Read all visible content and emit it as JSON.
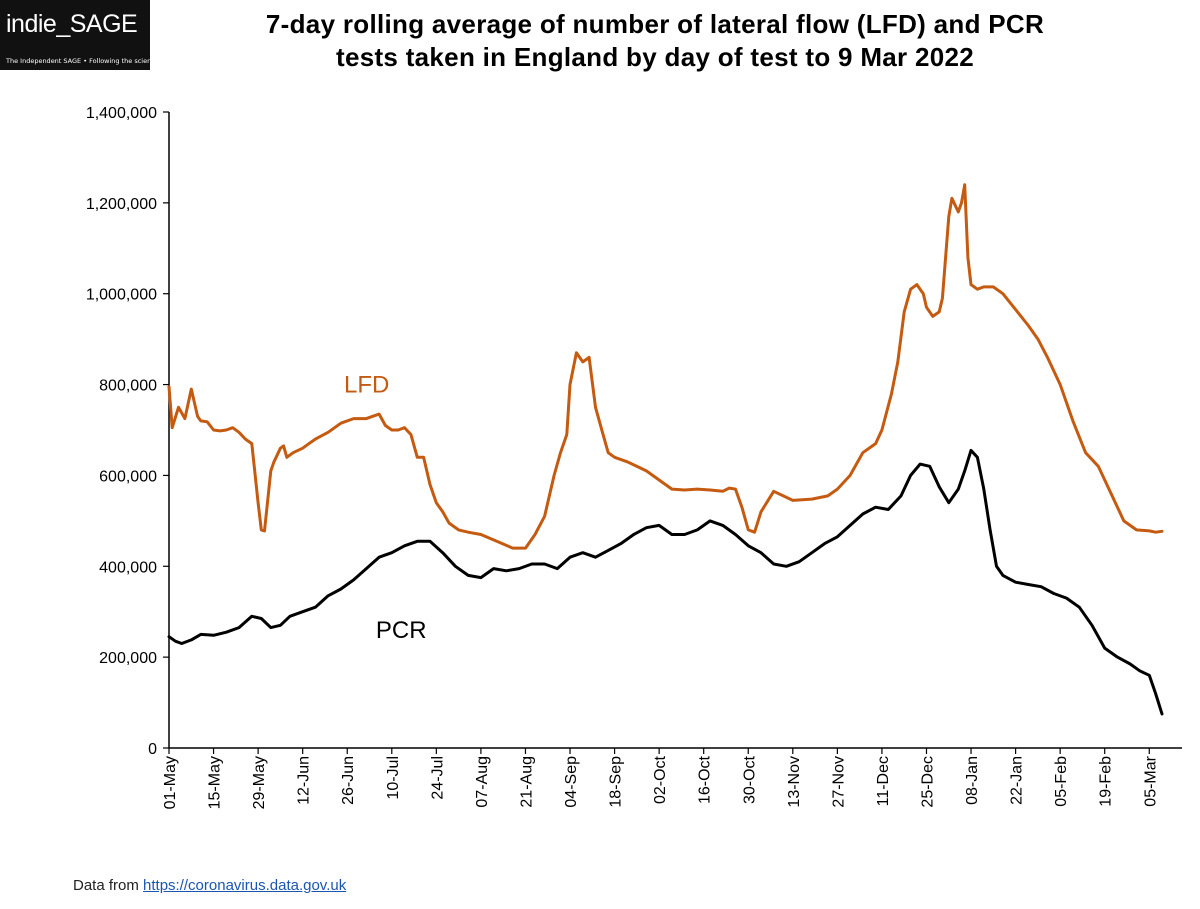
{
  "logo": {
    "name": "indie_SAGE",
    "tagline": "The Independent SAGE • Following the science"
  },
  "source": {
    "prefix": "Data from ",
    "link": "https://coronavirus.data.gov.uk"
  },
  "chart_data": {
    "type": "line",
    "title": "7-day rolling average of number of lateral flow (LFD) and PCR tests taken in England by day of test to 9 Mar 2022",
    "title_lines": [
      "7-day rolling average of number of lateral flow (LFD) and PCR",
      "tests taken in England by day of test to 9 Mar 2022"
    ],
    "xlabel": "",
    "ylabel": "",
    "ylim": [
      0,
      1400000
    ],
    "yticks": [
      0,
      200000,
      400000,
      600000,
      800000,
      1000000,
      1200000,
      1400000
    ],
    "ytick_labels": [
      "0",
      "200,000",
      "400,000",
      "600,000",
      "800,000",
      "1,000,000",
      "1,200,000",
      "1,400,000"
    ],
    "xlim": [
      "2021-05-01",
      "2022-03-09"
    ],
    "xticks": [
      "2021-05-01",
      "2021-05-15",
      "2021-05-29",
      "2021-06-12",
      "2021-06-26",
      "2021-07-10",
      "2021-07-24",
      "2021-08-07",
      "2021-08-21",
      "2021-09-04",
      "2021-09-18",
      "2021-10-02",
      "2021-10-16",
      "2021-10-30",
      "2021-11-13",
      "2021-11-27",
      "2021-12-11",
      "2021-12-25",
      "2022-01-08",
      "2022-01-22",
      "2022-02-05",
      "2022-02-19",
      "2022-03-05"
    ],
    "xtick_labels": [
      "01-May",
      "15-May",
      "29-May",
      "12-Jun",
      "26-Jun",
      "10-Jul",
      "24-Jul",
      "07-Aug",
      "21-Aug",
      "04-Sep",
      "18-Sep",
      "02-Oct",
      "16-Oct",
      "30-Oct",
      "13-Nov",
      "27-Nov",
      "11-Dec",
      "25-Dec",
      "08-Jan",
      "22-Jan",
      "05-Feb",
      "19-Feb",
      "05-Mar"
    ],
    "grid": false,
    "legend": "none",
    "series": [
      {
        "name": "LFD",
        "color": "#c55a11",
        "x": [
          "2021-05-01",
          "2021-05-02",
          "2021-05-04",
          "2021-05-06",
          "2021-05-08",
          "2021-05-10",
          "2021-05-11",
          "2021-05-13",
          "2021-05-15",
          "2021-05-17",
          "2021-05-19",
          "2021-05-21",
          "2021-05-23",
          "2021-05-25",
          "2021-05-27",
          "2021-05-29",
          "2021-05-30",
          "2021-05-31",
          "2021-06-02",
          "2021-06-03",
          "2021-06-05",
          "2021-06-06",
          "2021-06-07",
          "2021-06-09",
          "2021-06-12",
          "2021-06-14",
          "2021-06-16",
          "2021-06-20",
          "2021-06-24",
          "2021-06-28",
          "2021-07-02",
          "2021-07-06",
          "2021-07-08",
          "2021-07-10",
          "2021-07-12",
          "2021-07-14",
          "2021-07-16",
          "2021-07-18",
          "2021-07-20",
          "2021-07-22",
          "2021-07-24",
          "2021-07-26",
          "2021-07-28",
          "2021-07-31",
          "2021-08-03",
          "2021-08-07",
          "2021-08-12",
          "2021-08-17",
          "2021-08-21",
          "2021-08-24",
          "2021-08-27",
          "2021-08-30",
          "2021-09-01",
          "2021-09-03",
          "2021-09-04",
          "2021-09-06",
          "2021-09-08",
          "2021-09-10",
          "2021-09-12",
          "2021-09-14",
          "2021-09-16",
          "2021-09-18",
          "2021-09-22",
          "2021-09-28",
          "2021-10-02",
          "2021-10-06",
          "2021-10-10",
          "2021-10-14",
          "2021-10-18",
          "2021-10-22",
          "2021-10-24",
          "2021-10-26",
          "2021-10-28",
          "2021-10-30",
          "2021-11-01",
          "2021-11-03",
          "2021-11-07",
          "2021-11-13",
          "2021-11-19",
          "2021-11-24",
          "2021-11-27",
          "2021-12-01",
          "2021-12-05",
          "2021-12-09",
          "2021-12-11",
          "2021-12-14",
          "2021-12-16",
          "2021-12-18",
          "2021-12-20",
          "2021-12-22",
          "2021-12-24",
          "2021-12-25",
          "2021-12-27",
          "2021-12-29",
          "2021-12-30",
          "2022-01-01",
          "2022-01-02",
          "2022-01-04",
          "2022-01-05",
          "2022-01-06",
          "2022-01-07",
          "2022-01-08",
          "2022-01-10",
          "2022-01-12",
          "2022-01-15",
          "2022-01-18",
          "2022-01-22",
          "2022-01-26",
          "2022-01-29",
          "2022-02-01",
          "2022-02-05",
          "2022-02-09",
          "2022-02-13",
          "2022-02-17",
          "2022-02-21",
          "2022-02-25",
          "2022-03-01",
          "2022-03-05",
          "2022-03-07",
          "2022-03-09"
        ],
        "values": [
          795000,
          705000,
          750000,
          725000,
          790000,
          730000,
          720000,
          718000,
          700000,
          698000,
          700000,
          705000,
          695000,
          680000,
          670000,
          540000,
          480000,
          478000,
          610000,
          630000,
          660000,
          665000,
          640000,
          650000,
          660000,
          670000,
          680000,
          695000,
          715000,
          725000,
          725000,
          735000,
          710000,
          700000,
          700000,
          705000,
          690000,
          640000,
          640000,
          580000,
          540000,
          520000,
          495000,
          480000,
          475000,
          470000,
          455000,
          440000,
          440000,
          470000,
          510000,
          600000,
          650000,
          690000,
          800000,
          870000,
          850000,
          860000,
          750000,
          700000,
          650000,
          640000,
          630000,
          610000,
          590000,
          570000,
          568000,
          570000,
          568000,
          565000,
          572000,
          570000,
          530000,
          480000,
          475000,
          520000,
          565000,
          545000,
          548000,
          555000,
          570000,
          600000,
          650000,
          670000,
          700000,
          780000,
          850000,
          960000,
          1010000,
          1020000,
          1000000,
          970000,
          950000,
          960000,
          990000,
          1170000,
          1210000,
          1180000,
          1200000,
          1240000,
          1080000,
          1020000,
          1010000,
          1015000,
          1015000,
          1000000,
          965000,
          930000,
          900000,
          860000,
          800000,
          720000,
          650000,
          620000,
          560000,
          500000,
          480000,
          478000,
          475000,
          477000
        ]
      },
      {
        "name": "PCR",
        "color": "#000000",
        "x": [
          "2021-05-01",
          "2021-05-03",
          "2021-05-05",
          "2021-05-08",
          "2021-05-11",
          "2021-05-15",
          "2021-05-19",
          "2021-05-23",
          "2021-05-27",
          "2021-05-30",
          "2021-06-02",
          "2021-06-05",
          "2021-06-08",
          "2021-06-12",
          "2021-06-16",
          "2021-06-20",
          "2021-06-24",
          "2021-06-28",
          "2021-07-02",
          "2021-07-06",
          "2021-07-10",
          "2021-07-14",
          "2021-07-18",
          "2021-07-22",
          "2021-07-26",
          "2021-07-30",
          "2021-08-03",
          "2021-08-07",
          "2021-08-11",
          "2021-08-15",
          "2021-08-19",
          "2021-08-23",
          "2021-08-27",
          "2021-08-31",
          "2021-09-04",
          "2021-09-08",
          "2021-09-12",
          "2021-09-16",
          "2021-09-20",
          "2021-09-24",
          "2021-09-28",
          "2021-10-02",
          "2021-10-06",
          "2021-10-10",
          "2021-10-14",
          "2021-10-18",
          "2021-10-22",
          "2021-10-26",
          "2021-10-30",
          "2021-11-03",
          "2021-11-07",
          "2021-11-11",
          "2021-11-15",
          "2021-11-19",
          "2021-11-23",
          "2021-11-27",
          "2021-12-01",
          "2021-12-05",
          "2021-12-09",
          "2021-12-13",
          "2021-12-17",
          "2021-12-20",
          "2021-12-23",
          "2021-12-26",
          "2021-12-29",
          "2022-01-01",
          "2022-01-04",
          "2022-01-06",
          "2022-01-08",
          "2022-01-10",
          "2022-01-12",
          "2022-01-14",
          "2022-01-16",
          "2022-01-18",
          "2022-01-22",
          "2022-01-26",
          "2022-01-30",
          "2022-02-03",
          "2022-02-07",
          "2022-02-11",
          "2022-02-15",
          "2022-02-19",
          "2022-02-23",
          "2022-02-27",
          "2022-03-02",
          "2022-03-05",
          "2022-03-07",
          "2022-03-09"
        ],
        "values": [
          245000,
          235000,
          230000,
          238000,
          250000,
          248000,
          255000,
          265000,
          290000,
          285000,
          265000,
          270000,
          290000,
          300000,
          310000,
          335000,
          350000,
          370000,
          395000,
          420000,
          430000,
          445000,
          455000,
          455000,
          430000,
          400000,
          380000,
          375000,
          395000,
          390000,
          395000,
          405000,
          405000,
          395000,
          420000,
          430000,
          420000,
          435000,
          450000,
          470000,
          485000,
          490000,
          470000,
          470000,
          480000,
          500000,
          490000,
          470000,
          445000,
          430000,
          405000,
          400000,
          410000,
          430000,
          450000,
          465000,
          490000,
          515000,
          530000,
          525000,
          555000,
          600000,
          625000,
          620000,
          575000,
          540000,
          570000,
          610000,
          655000,
          640000,
          570000,
          480000,
          400000,
          380000,
          365000,
          360000,
          355000,
          340000,
          330000,
          310000,
          270000,
          220000,
          200000,
          185000,
          170000,
          160000,
          120000,
          75000
        ]
      }
    ],
    "annotations": [
      {
        "text": "LFD",
        "color": "#c55a11",
        "x": "2021-06-25",
        "y": 800000
      },
      {
        "text": "PCR",
        "color": "#000000",
        "x": "2021-07-05",
        "y": 260000
      }
    ]
  }
}
